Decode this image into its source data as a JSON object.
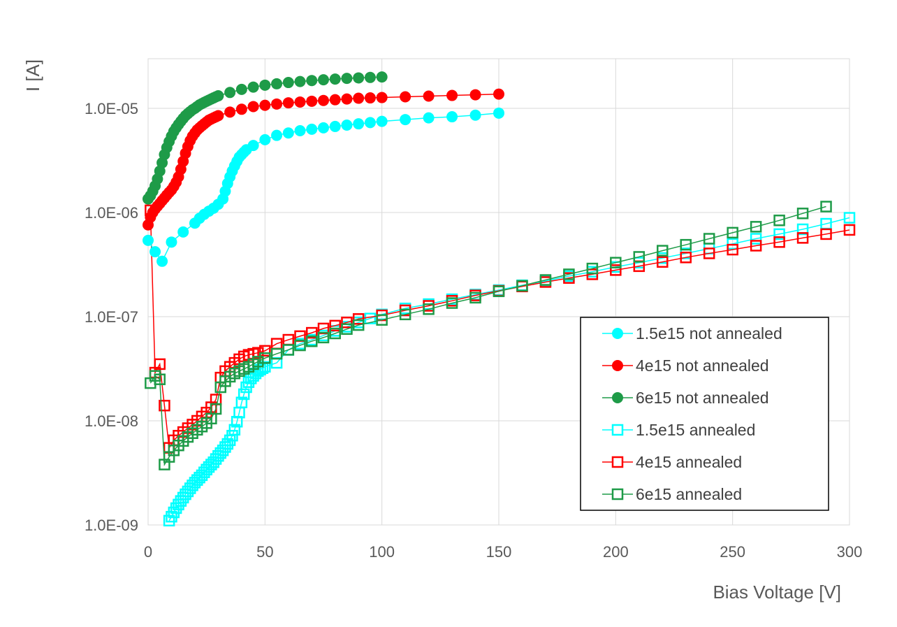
{
  "chart_data": {
    "type": "scatter",
    "title": "",
    "xlabel": "Bias Voltage [V]",
    "ylabel": "I [A]",
    "xscale": "linear",
    "yscale": "log",
    "xlim": [
      0,
      300
    ],
    "ylim": [
      1e-09,
      3e-05
    ],
    "x_ticks": [
      0,
      50,
      100,
      150,
      200,
      250,
      300
    ],
    "x_tick_labels": [
      "0",
      "50",
      "100",
      "150",
      "200",
      "250",
      "300"
    ],
    "y_ticks": [
      1e-09,
      1e-08,
      1e-07,
      1e-06,
      1e-05
    ],
    "y_tick_labels": [
      "1.0E-09",
      "1.0E-08",
      "1.0E-07",
      "1.0E-06",
      "1.0E-05"
    ],
    "grid": true,
    "legend_position": "bottom-right",
    "series": [
      {
        "name": "1.5e15 not annealed",
        "color": "#00FFFF",
        "marker": "filled-circle",
        "x": [
          0,
          3,
          6,
          10,
          15,
          20,
          22,
          24,
          26,
          28,
          30,
          32,
          33,
          34,
          35,
          36,
          37,
          38,
          39,
          40,
          41,
          42,
          45,
          50,
          55,
          60,
          65,
          70,
          75,
          80,
          85,
          90,
          95,
          100,
          110,
          120,
          130,
          140,
          150
        ],
        "y": [
          5.4e-07,
          4.2e-07,
          3.4e-07,
          5.2e-07,
          6.5e-07,
          7.9e-07,
          8.8e-07,
          9.6e-07,
          1.03e-06,
          1.1e-06,
          1.2e-06,
          1.35e-06,
          1.6e-06,
          1.9e-06,
          2.2e-06,
          2.5e-06,
          2.8e-06,
          3.1e-06,
          3.4e-06,
          3.6e-06,
          3.8e-06,
          4e-06,
          4.4e-06,
          5e-06,
          5.5e-06,
          5.8e-06,
          6.1e-06,
          6.3e-06,
          6.5e-06,
          6.7e-06,
          6.9e-06,
          7.1e-06,
          7.3e-06,
          7.5e-06,
          7.8e-06,
          8.1e-06,
          8.3e-06,
          8.6e-06,
          9e-06
        ]
      },
      {
        "name": "4e15 not annealed",
        "color": "#FF0000",
        "marker": "filled-circle",
        "x": [
          0,
          1,
          2,
          3,
          4,
          5,
          6,
          7,
          8,
          9,
          10,
          11,
          12,
          13,
          14,
          15,
          16,
          17,
          18,
          19,
          20,
          21,
          22,
          23,
          24,
          25,
          26,
          27,
          28,
          29,
          30,
          35,
          40,
          45,
          50,
          55,
          60,
          65,
          70,
          75,
          80,
          85,
          90,
          95,
          100,
          110,
          120,
          130,
          140,
          150
        ],
        "y": [
          7.6e-07,
          9e-07,
          1e-06,
          1.08e-06,
          1.15e-06,
          1.22e-06,
          1.3e-06,
          1.38e-06,
          1.47e-06,
          1.56e-06,
          1.65e-06,
          1.78e-06,
          1.95e-06,
          2.2e-06,
          2.6e-06,
          3.1e-06,
          3.7e-06,
          4.3e-06,
          4.9e-06,
          5.4e-06,
          5.8e-06,
          6.2e-06,
          6.5e-06,
          6.8e-06,
          7.1e-06,
          7.4e-06,
          7.7e-06,
          7.9e-06,
          8.1e-06,
          8.3e-06,
          8.5e-06,
          9.2e-06,
          9.8e-06,
          1.04e-05,
          1.07e-05,
          1.1e-05,
          1.13e-05,
          1.15e-05,
          1.17e-05,
          1.19e-05,
          1.21e-05,
          1.23e-05,
          1.25e-05,
          1.26e-05,
          1.27e-05,
          1.29e-05,
          1.31e-05,
          1.33e-05,
          1.35e-05,
          1.37e-05
        ]
      },
      {
        "name": "6e15 not annealed",
        "color": "#1E9B48",
        "marker": "filled-circle",
        "x": [
          0,
          1,
          2,
          3,
          4,
          5,
          6,
          7,
          8,
          9,
          10,
          11,
          12,
          13,
          14,
          15,
          16,
          17,
          18,
          19,
          20,
          21,
          22,
          23,
          24,
          25,
          26,
          27,
          28,
          29,
          30,
          35,
          40,
          45,
          50,
          55,
          60,
          65,
          70,
          75,
          80,
          85,
          90,
          95,
          100
        ],
        "y": [
          1.35e-06,
          1.45e-06,
          1.6e-06,
          1.8e-06,
          2.1e-06,
          2.5e-06,
          3e-06,
          3.6e-06,
          4.2e-06,
          4.8e-06,
          5.4e-06,
          6e-06,
          6.5e-06,
          7e-06,
          7.5e-06,
          8e-06,
          8.5e-06,
          8.9e-06,
          9.3e-06,
          9.7e-06,
          1e-05,
          1.04e-05,
          1.08e-05,
          1.11e-05,
          1.14e-05,
          1.17e-05,
          1.2e-05,
          1.23e-05,
          1.26e-05,
          1.29e-05,
          1.32e-05,
          1.42e-05,
          1.52e-05,
          1.6e-05,
          1.67e-05,
          1.72e-05,
          1.77e-05,
          1.81e-05,
          1.85e-05,
          1.88e-05,
          1.91e-05,
          1.94e-05,
          1.96e-05,
          1.98e-05,
          2e-05
        ]
      },
      {
        "name": "1.5e15 annealed",
        "color": "#00FFFF",
        "marker": "open-square",
        "x": [
          9,
          10,
          11,
          12,
          13,
          14,
          15,
          16,
          17,
          18,
          19,
          20,
          21,
          22,
          23,
          24,
          25,
          26,
          27,
          28,
          29,
          30,
          31,
          32,
          33,
          34,
          35,
          36,
          37,
          38,
          39,
          40,
          41,
          42,
          43,
          44,
          45,
          46,
          47,
          48,
          49,
          50,
          55,
          60,
          65,
          70,
          75,
          80,
          85,
          90,
          95,
          100,
          110,
          120,
          130,
          140,
          150,
          160,
          170,
          180,
          190,
          200,
          210,
          220,
          230,
          240,
          250,
          260,
          270,
          280,
          290,
          300
        ],
        "y": [
          1.1e-09,
          1.2e-09,
          1.32e-09,
          1.45e-09,
          1.57e-09,
          1.7e-09,
          1.83e-09,
          1.97e-09,
          2.1e-09,
          2.25e-09,
          2.4e-09,
          2.55e-09,
          2.7e-09,
          2.85e-09,
          3e-09,
          3.2e-09,
          3.4e-09,
          3.6e-09,
          3.8e-09,
          4e-09,
          4.3e-09,
          4.6e-09,
          4.9e-09,
          5.2e-09,
          5.6e-09,
          6e-09,
          6.5e-09,
          7.2e-09,
          8.2e-09,
          9.8e-09,
          1.2e-08,
          1.5e-08,
          1.8e-08,
          2.1e-08,
          2.35e-08,
          2.55e-08,
          2.7e-08,
          2.85e-08,
          3e-08,
          3.1e-08,
          3.2e-08,
          3.3e-08,
          3.6e-08,
          4.8e-08,
          5.5e-08,
          6e-08,
          6.6e-08,
          7.3e-08,
          8e-08,
          8.8e-08,
          9.6e-08,
          1.05e-07,
          1.2e-07,
          1.32e-07,
          1.47e-07,
          1.63e-07,
          1.8e-07,
          2e-07,
          2.2e-07,
          2.45e-07,
          2.7e-07,
          3e-07,
          3.3e-07,
          3.65e-07,
          4.05e-07,
          4.5e-07,
          5e-07,
          5.6e-07,
          6.2e-07,
          6.9e-07,
          7.8e-07,
          8.9e-07
        ]
      },
      {
        "name": "4e15 annealed",
        "color": "#FF0000",
        "marker": "open-square",
        "x": [
          1,
          3,
          5,
          7,
          9,
          11,
          13,
          15,
          17,
          19,
          21,
          23,
          25,
          27,
          29,
          31,
          33,
          35,
          37,
          39,
          41,
          43,
          45,
          47,
          50,
          55,
          60,
          65,
          70,
          75,
          80,
          85,
          90,
          100,
          110,
          120,
          130,
          140,
          150,
          160,
          170,
          180,
          190,
          200,
          210,
          220,
          230,
          240,
          250,
          260,
          270,
          280,
          290,
          300
        ],
        "y": [
          1.05e-06,
          2.9e-08,
          3.5e-08,
          1.4e-08,
          5.5e-09,
          6.5e-09,
          7.2e-09,
          7.8e-09,
          8.5e-09,
          9.2e-09,
          1e-08,
          1.1e-08,
          1.2e-08,
          1.35e-08,
          1.6e-08,
          2.6e-08,
          3e-08,
          3.3e-08,
          3.6e-08,
          3.9e-08,
          4.15e-08,
          4.3e-08,
          4.4e-08,
          4.5e-08,
          4.7e-08,
          5.5e-08,
          6e-08,
          6.5e-08,
          7e-08,
          7.7e-08,
          8.2e-08,
          8.8e-08,
          9.5e-08,
          1.03e-07,
          1.15e-07,
          1.27e-07,
          1.42e-07,
          1.6e-07,
          1.77e-07,
          1.95e-07,
          2.15e-07,
          2.35e-07,
          2.55e-07,
          2.8e-07,
          3.05e-07,
          3.35e-07,
          3.7e-07,
          4.05e-07,
          4.4e-07,
          4.8e-07,
          5.2e-07,
          5.7e-07,
          6.2e-07,
          6.8e-07
        ]
      },
      {
        "name": "6e15 annealed",
        "color": "#1E9B48",
        "marker": "open-square",
        "x": [
          1,
          3,
          5,
          7,
          9,
          11,
          13,
          15,
          17,
          19,
          21,
          23,
          25,
          27,
          29,
          31,
          33,
          35,
          37,
          39,
          41,
          43,
          45,
          47,
          50,
          55,
          60,
          65,
          70,
          75,
          80,
          85,
          90,
          100,
          110,
          120,
          130,
          140,
          150,
          160,
          170,
          180,
          190,
          200,
          210,
          220,
          230,
          240,
          250,
          260,
          270,
          280,
          290
        ],
        "y": [
          2.3e-08,
          2.7e-08,
          2.5e-08,
          3.8e-09,
          4.5e-09,
          5.2e-09,
          5.8e-09,
          6.4e-09,
          7e-09,
          7.6e-09,
          8.2e-09,
          8.8e-09,
          9.5e-09,
          1.05e-08,
          1.3e-08,
          2.1e-08,
          2.4e-08,
          2.65e-08,
          2.85e-08,
          3e-08,
          3.15e-08,
          3.3e-08,
          3.5e-08,
          3.7e-08,
          4e-08,
          4.4e-08,
          4.8e-08,
          5.3e-08,
          5.8e-08,
          6.3e-08,
          6.9e-08,
          7.6e-08,
          8.3e-08,
          9.3e-08,
          1.05e-07,
          1.18e-07,
          1.35e-07,
          1.52e-07,
          1.75e-07,
          1.98e-07,
          2.25e-07,
          2.55e-07,
          2.9e-07,
          3.3e-07,
          3.75e-07,
          4.3e-07,
          4.9e-07,
          5.6e-07,
          6.4e-07,
          7.3e-07,
          8.4e-07,
          9.8e-07,
          1.14e-06
        ]
      }
    ]
  }
}
